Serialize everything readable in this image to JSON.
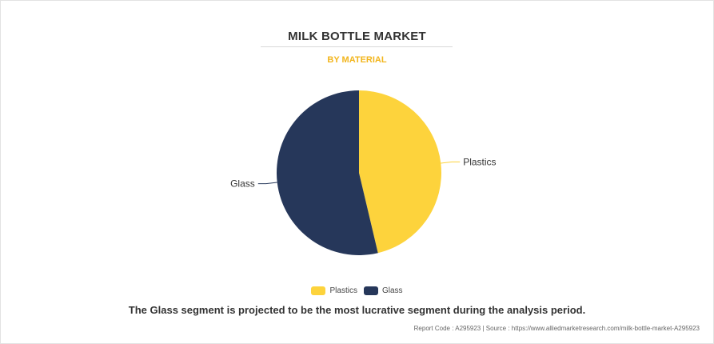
{
  "header": {
    "title": "MILK BOTTLE MARKET",
    "subtitle": "BY MATERIAL"
  },
  "colors": {
    "subtitle": "#f2b51c",
    "plastics": "#fdd33c",
    "glass": "#26375a",
    "leader_line": "#aaaaaa"
  },
  "chart_data": {
    "type": "pie",
    "slices": [
      {
        "label": "Plastics",
        "value": 46.3
      },
      {
        "label": "Glass",
        "value": 53.7
      }
    ],
    "legend_placement": "bottom-center"
  },
  "legend": {
    "items": [
      {
        "label": "Plastics"
      },
      {
        "label": "Glass"
      }
    ]
  },
  "caption": "The Glass segment is projected to be the most lucrative segment during the analysis period.",
  "footer": "Report Code : A295923  |  Source : https://www.alliedmarketresearch.com/milk-bottle-market-A295923"
}
